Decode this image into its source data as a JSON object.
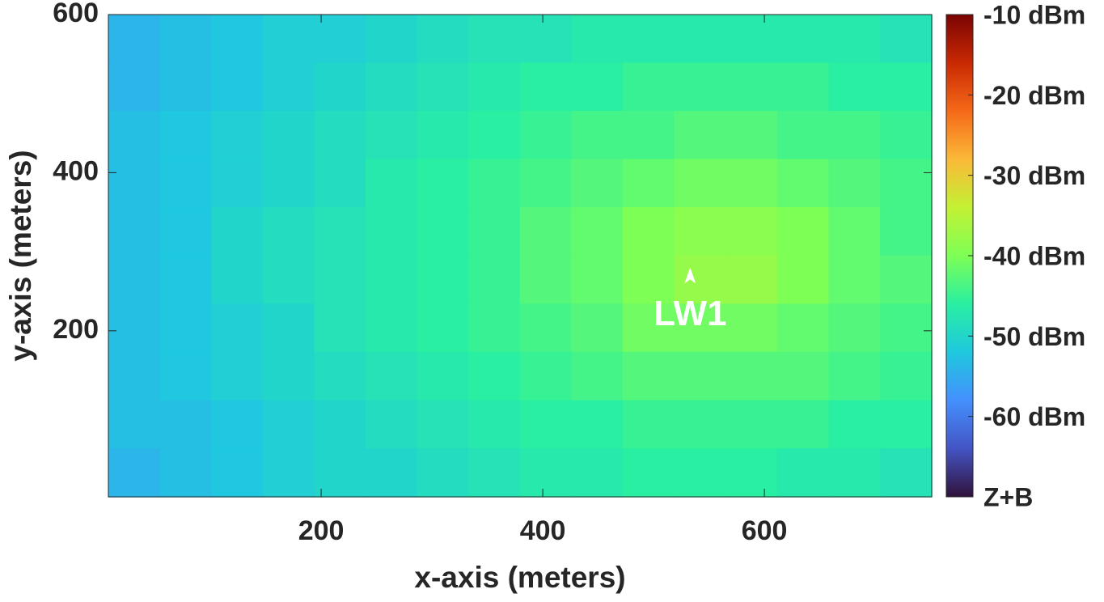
{
  "chart_data": {
    "type": "heatmap",
    "xlabel": "x-axis (meters)",
    "ylabel": "y-axis (meters)",
    "xlim": [
      8,
      751
    ],
    "ylim": [
      -10,
      600
    ],
    "xticks": [
      200,
      400,
      600
    ],
    "yticks": [
      200,
      400,
      600
    ],
    "xbins": [
      8,
      54.4,
      100.9,
      147.3,
      193.8,
      240.2,
      286.6,
      333.1,
      379.5,
      425.9,
      472.4,
      518.8,
      565.3,
      611.7,
      658.1,
      704.6,
      751
    ],
    "ybins": [
      600,
      539,
      478,
      417,
      356,
      295,
      234,
      173,
      112,
      51,
      -10
    ],
    "values": [
      [
        -54,
        -53,
        -52,
        -51,
        -51,
        -50,
        -49,
        -48,
        -48,
        -47,
        -47,
        -47,
        -47,
        -47,
        -47,
        -48
      ],
      [
        -54,
        -53,
        -52,
        -51,
        -50,
        -49,
        -48,
        -47,
        -46,
        -46,
        -45,
        -45,
        -45,
        -45,
        -46,
        -46
      ],
      [
        -53,
        -52,
        -51,
        -50,
        -49,
        -48,
        -47,
        -46,
        -45,
        -44,
        -44,
        -43,
        -43,
        -44,
        -44,
        -45
      ],
      [
        -53,
        -52,
        -51,
        -50,
        -49,
        -47,
        -46,
        -45,
        -44,
        -43,
        -42,
        -41,
        -41,
        -42,
        -43,
        -44
      ],
      [
        -53,
        -52,
        -50,
        -49,
        -48,
        -47,
        -46,
        -45,
        -43,
        -42,
        -40,
        -39,
        -39,
        -40,
        -42,
        -44
      ],
      [
        -53,
        -52,
        -50,
        -49,
        -48,
        -47,
        -46,
        -45,
        -43,
        -42,
        -40,
        -38,
        -38,
        -40,
        -42,
        -43
      ],
      [
        -53,
        -52,
        -51,
        -50,
        -48,
        -47,
        -46,
        -45,
        -44,
        -43,
        -41,
        -41,
        -41,
        -42,
        -43,
        -44
      ],
      [
        -53,
        -52,
        -51,
        -50,
        -49,
        -48,
        -47,
        -46,
        -45,
        -44,
        -43,
        -43,
        -43,
        -43,
        -44,
        -45
      ],
      [
        -53,
        -53,
        -52,
        -51,
        -50,
        -49,
        -48,
        -47,
        -46,
        -46,
        -45,
        -45,
        -45,
        -45,
        -46,
        -46
      ],
      [
        -54,
        -53,
        -52,
        -51,
        -50,
        -50,
        -49,
        -48,
        -47,
        -47,
        -46,
        -46,
        -46,
        -47,
        -47,
        -48
      ]
    ],
    "clim": [
      -70,
      -10
    ],
    "colormap": [
      "#30123b",
      "#4454c4",
      "#4490fe",
      "#1fc8de",
      "#29efa2",
      "#7eff55",
      "#c3f134",
      "#fbb938",
      "#f56918",
      "#c92903",
      "#7a0403"
    ],
    "colorbar_ticks": [
      {
        "value": -10,
        "label": "-10 dBm"
      },
      {
        "value": -20,
        "label": "-20 dBm"
      },
      {
        "value": -30,
        "label": "-30 dBm"
      },
      {
        "value": -40,
        "label": "-40 dBm"
      },
      {
        "value": -50,
        "label": "-50 dBm"
      },
      {
        "value": -60,
        "label": "-60 dBm"
      },
      {
        "value": -70,
        "label": "Z+B"
      }
    ],
    "markers": [
      {
        "label": "LW1",
        "x": 533,
        "y": 268
      }
    ]
  }
}
